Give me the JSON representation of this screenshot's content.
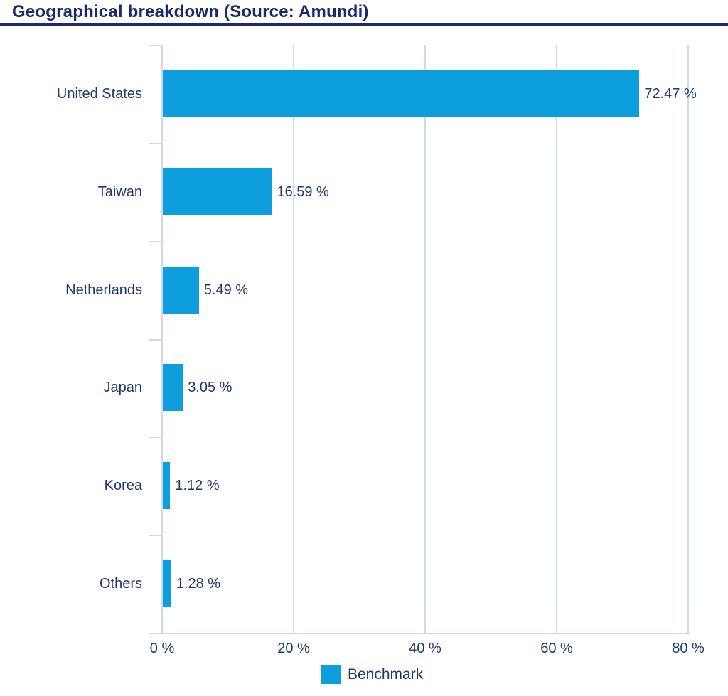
{
  "title": "Geographical breakdown (Source: Amundi)",
  "colors": {
    "bar": "#0d9edd",
    "text": "#1d3a6d",
    "title": "#1b2a6b",
    "rule": "#1e2a6e",
    "grid": "#cfdbeb"
  },
  "chart_data": {
    "type": "bar",
    "orientation": "horizontal",
    "title": "Geographical breakdown (Source: Amundi)",
    "categories": [
      "United States",
      "Taiwan",
      "Netherlands",
      "Japan",
      "Korea",
      "Others"
    ],
    "series": [
      {
        "name": "Benchmark",
        "values": [
          72.47,
          16.59,
          5.49,
          3.05,
          1.12,
          1.28
        ],
        "value_labels": [
          "72.47 %",
          "16.59 %",
          "5.49 %",
          "3.05 %",
          "1.12 %",
          "1.28 %"
        ]
      }
    ],
    "xlabel": "",
    "ylabel": "",
    "xlim": [
      0,
      80
    ],
    "x_tick_values": [
      0,
      20,
      40,
      60,
      80
    ],
    "x_tick_labels": [
      "0 %",
      "20 %",
      "40 %",
      "60 %",
      "80 %"
    ],
    "grid": true,
    "legend": {
      "label": "Benchmark",
      "position": "bottom"
    }
  }
}
